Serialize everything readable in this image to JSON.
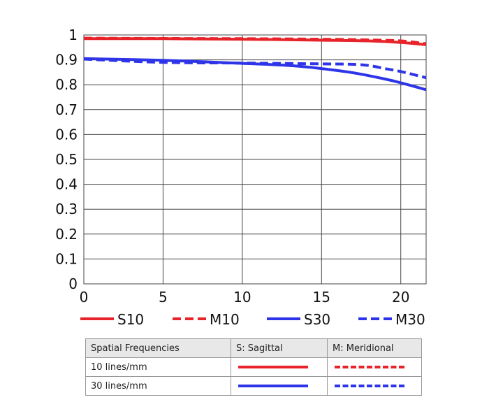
{
  "chart_data": {
    "type": "line",
    "xlim": [
      0,
      21.6
    ],
    "ylim": [
      0,
      1
    ],
    "x_ticks": [
      "0",
      "5",
      "10",
      "15",
      "20"
    ],
    "y_ticks": [
      "0",
      "0.1",
      "0.2",
      "0.3",
      "0.4",
      "0.5",
      "0.6",
      "0.7",
      "0.8",
      "0.9",
      "1"
    ],
    "grid": true,
    "legend_position": "bottom",
    "series": [
      {
        "name": "S10",
        "color": "#e8242b",
        "dash": false,
        "points": [
          [
            0,
            0.985
          ],
          [
            5,
            0.985
          ],
          [
            10,
            0.983
          ],
          [
            15,
            0.979
          ],
          [
            18,
            0.976
          ],
          [
            20,
            0.97
          ],
          [
            21.6,
            0.961
          ]
        ]
      },
      {
        "name": "M10",
        "color": "#e8242b",
        "dash": true,
        "points": [
          [
            0,
            0.987
          ],
          [
            5,
            0.986
          ],
          [
            10,
            0.985
          ],
          [
            15,
            0.983
          ],
          [
            18,
            0.98
          ],
          [
            20,
            0.976
          ],
          [
            21.6,
            0.965
          ]
        ]
      },
      {
        "name": "S30",
        "color": "#2e35e8",
        "dash": false,
        "points": [
          [
            0,
            0.905
          ],
          [
            5,
            0.898
          ],
          [
            10,
            0.886
          ],
          [
            13,
            0.877
          ],
          [
            15,
            0.865
          ],
          [
            17,
            0.848
          ],
          [
            19,
            0.823
          ],
          [
            20,
            0.808
          ],
          [
            21.6,
            0.78
          ]
        ]
      },
      {
        "name": "M30",
        "color": "#2e35e8",
        "dash": true,
        "points": [
          [
            0,
            0.903
          ],
          [
            5,
            0.89
          ],
          [
            10,
            0.887
          ],
          [
            15,
            0.884
          ],
          [
            17,
            0.882
          ],
          [
            18,
            0.877
          ],
          [
            19,
            0.865
          ],
          [
            20,
            0.853
          ],
          [
            21.6,
            0.828
          ]
        ]
      }
    ]
  },
  "key_table": {
    "headers": [
      "Spatial Frequencies",
      "S: Sagittal",
      "M: Meridional"
    ],
    "rows": [
      {
        "label": "10 lines/mm",
        "color": "#e8242b"
      },
      {
        "label": "30 lines/mm",
        "color": "#2e35e8"
      }
    ]
  }
}
